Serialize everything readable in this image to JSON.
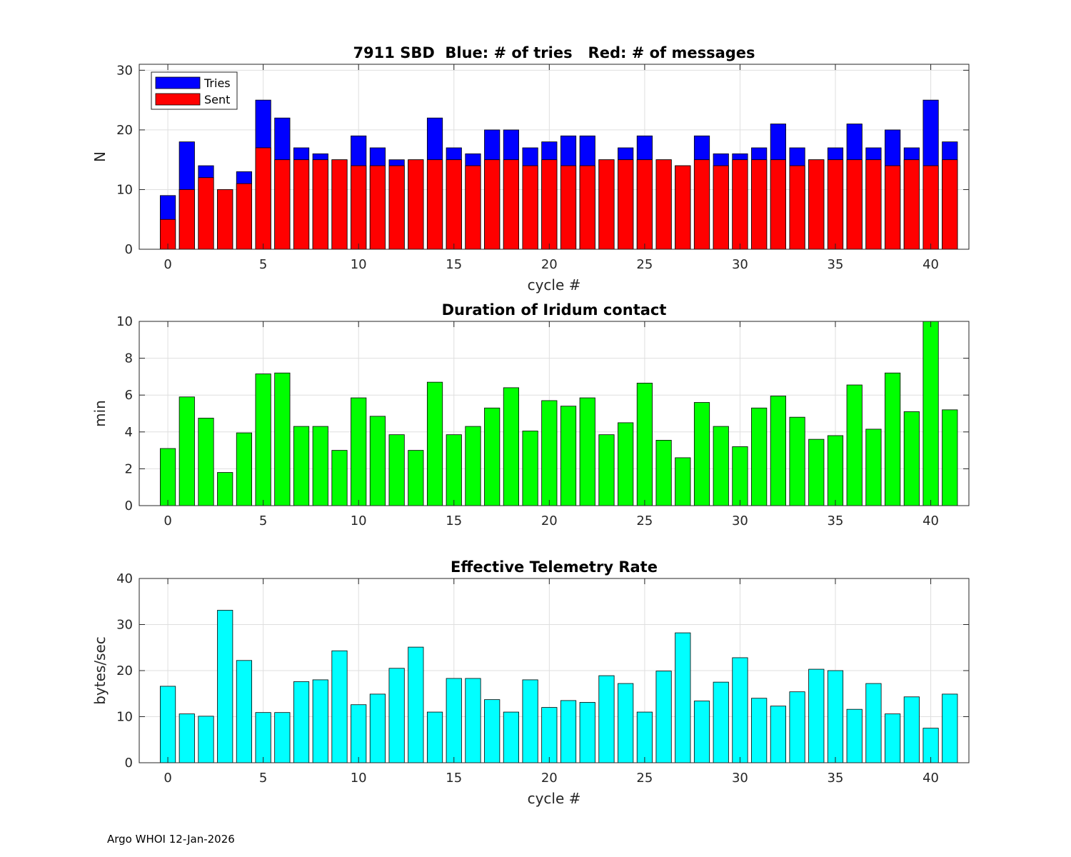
{
  "footer_text": "Argo WHOI 12-Jan-2026",
  "chart_data": [
    {
      "type": "bar",
      "title": "7911 SBD  Blue: # of tries   Red: # of messages",
      "xlabel": "cycle #",
      "ylabel": "N",
      "xlim": [
        -1.5,
        42
      ],
      "ylim": [
        0,
        31
      ],
      "xticks": [
        0,
        5,
        10,
        15,
        20,
        25,
        30,
        35,
        40
      ],
      "yticks": [
        0,
        10,
        20,
        30
      ],
      "grid": true,
      "legend": {
        "position": "top-left",
        "entries": [
          "Tries",
          "Sent"
        ]
      },
      "x": [
        0,
        1,
        2,
        3,
        4,
        5,
        6,
        7,
        8,
        9,
        10,
        11,
        12,
        13,
        14,
        15,
        16,
        17,
        18,
        19,
        20,
        21,
        22,
        23,
        24,
        25,
        26,
        27,
        28,
        29,
        30,
        31,
        32,
        33,
        34,
        35,
        36,
        37,
        38,
        39,
        40,
        41
      ],
      "series": [
        {
          "name": "Tries",
          "color": "#0000ff",
          "values": [
            9,
            18,
            14,
            10,
            13,
            25,
            22,
            17,
            16,
            15,
            19,
            17,
            15,
            15,
            22,
            17,
            16,
            20,
            20,
            17,
            18,
            19,
            19,
            15,
            17,
            19,
            15,
            14,
            19,
            16,
            16,
            17,
            21,
            17,
            15,
            17,
            21,
            17,
            20,
            17,
            25,
            18
          ]
        },
        {
          "name": "Sent",
          "color": "#ff0000",
          "values": [
            5,
            10,
            12,
            10,
            11,
            17,
            15,
            15,
            15,
            15,
            14,
            14,
            14,
            15,
            15,
            15,
            14,
            15,
            15,
            14,
            15,
            14,
            14,
            15,
            15,
            15,
            15,
            14,
            15,
            14,
            15,
            15,
            15,
            14,
            15,
            15,
            15,
            15,
            14,
            15,
            14,
            15
          ]
        }
      ]
    },
    {
      "type": "bar",
      "title": "Duration of Iridum contact",
      "xlabel": "",
      "ylabel": "min",
      "xlim": [
        -1.5,
        42
      ],
      "ylim": [
        0,
        10
      ],
      "xticks": [
        0,
        5,
        10,
        15,
        20,
        25,
        30,
        35,
        40
      ],
      "yticks": [
        0,
        2,
        4,
        6,
        8,
        10
      ],
      "grid": true,
      "x": [
        -1,
        0,
        1,
        2,
        3,
        4,
        5,
        6,
        7,
        8,
        9,
        10,
        11,
        12,
        13,
        14,
        15,
        16,
        17,
        18,
        19,
        20,
        21,
        22,
        23,
        24,
        25,
        26,
        27,
        28,
        29,
        30,
        31,
        32,
        33,
        34,
        35,
        36,
        37,
        38,
        39,
        40,
        41
      ],
      "series": [
        {
          "name": "Duration",
          "color": "#00ff00",
          "values": [
            0,
            3.1,
            5.9,
            4.75,
            1.8,
            3.95,
            7.15,
            7.2,
            4.3,
            4.3,
            3.0,
            5.85,
            4.85,
            3.85,
            3.0,
            6.7,
            3.85,
            4.3,
            5.3,
            6.4,
            4.05,
            5.7,
            5.4,
            5.85,
            3.85,
            4.5,
            6.65,
            3.55,
            2.6,
            5.6,
            4.3,
            3.2,
            5.3,
            5.95,
            4.8,
            3.6,
            3.8,
            6.55,
            4.15,
            7.2,
            5.1,
            10,
            5.2
          ]
        }
      ]
    },
    {
      "type": "bar",
      "title": "Effective Telemetry Rate",
      "xlabel": "cycle #",
      "ylabel": "bytes/sec",
      "xlim": [
        -1.5,
        42
      ],
      "ylim": [
        0,
        40
      ],
      "xticks": [
        0,
        5,
        10,
        15,
        20,
        25,
        30,
        35,
        40
      ],
      "yticks": [
        0,
        10,
        20,
        30,
        40
      ],
      "grid": true,
      "x": [
        0,
        1,
        2,
        3,
        4,
        5,
        6,
        7,
        8,
        9,
        10,
        11,
        12,
        13,
        14,
        15,
        16,
        17,
        18,
        19,
        20,
        21,
        22,
        23,
        24,
        25,
        26,
        27,
        28,
        29,
        30,
        31,
        32,
        33,
        34,
        35,
        36,
        37,
        38,
        39,
        40,
        41
      ],
      "series": [
        {
          "name": "Rate",
          "color": "#00ffff",
          "values": [
            16.6,
            10.6,
            10.1,
            33.1,
            22.2,
            10.9,
            10.9,
            17.6,
            18.0,
            24.3,
            12.6,
            14.9,
            20.5,
            25.1,
            11.0,
            18.3,
            18.3,
            13.7,
            11.0,
            18.0,
            12.0,
            13.5,
            13.1,
            18.9,
            17.2,
            11.0,
            19.9,
            28.2,
            13.4,
            17.5,
            22.8,
            14.0,
            12.3,
            15.4,
            20.3,
            20.0,
            11.6,
            17.2,
            10.6,
            14.3,
            7.5,
            14.9
          ]
        }
      ]
    }
  ]
}
